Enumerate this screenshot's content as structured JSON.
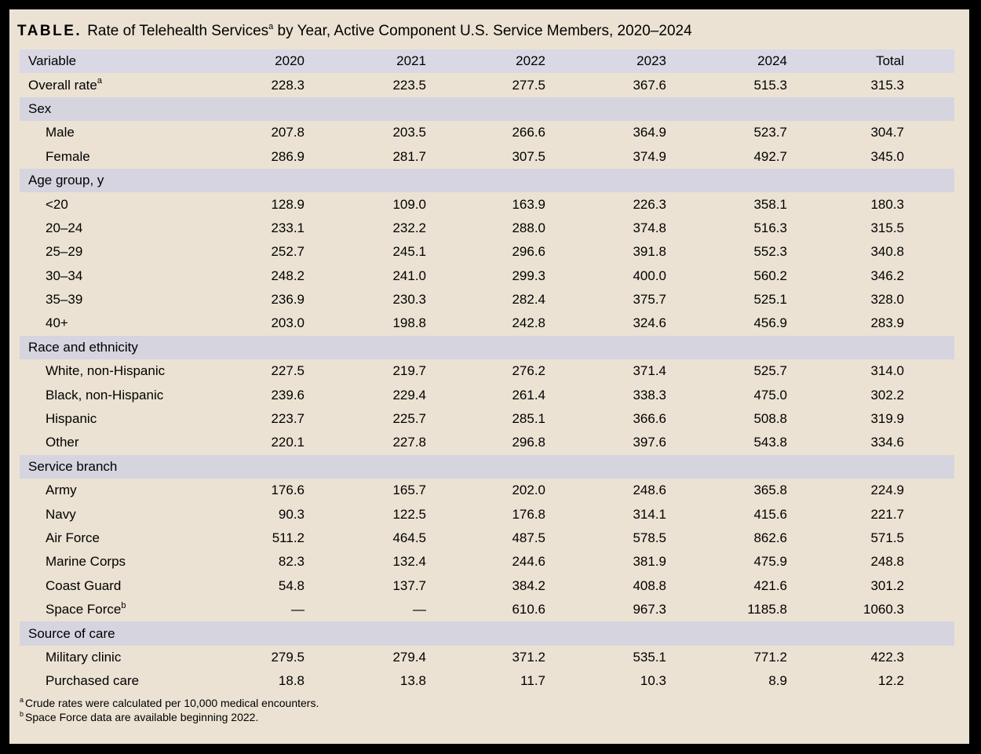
{
  "title": {
    "prefix": "TABLE.",
    "main": "Rate of Telehealth Services",
    "sup": "a",
    "rest": " by Year, Active Component U.S. Service Members, 2020–2024"
  },
  "colors": {
    "frame": "#000000",
    "page_background": "#EBE2D3",
    "header_band": "#DAD8E5",
    "section_band": "#D5D4DF",
    "text": "#000000"
  },
  "table": {
    "columns": [
      "Variable",
      "2020",
      "2021",
      "2022",
      "2023",
      "2024",
      "Total"
    ],
    "rows": [
      {
        "type": "data",
        "label": "Overall rate",
        "sup": "a",
        "indent": false,
        "values": [
          "228.3",
          "223.5",
          "277.5",
          "367.6",
          "515.3",
          "315.3"
        ]
      },
      {
        "type": "section",
        "label": "Sex"
      },
      {
        "type": "data",
        "label": "Male",
        "indent": true,
        "values": [
          "207.8",
          "203.5",
          "266.6",
          "364.9",
          "523.7",
          "304.7"
        ]
      },
      {
        "type": "data",
        "label": "Female",
        "indent": true,
        "values": [
          "286.9",
          "281.7",
          "307.5",
          "374.9",
          "492.7",
          "345.0"
        ]
      },
      {
        "type": "section",
        "label": "Age group, y"
      },
      {
        "type": "data",
        "label": "<20",
        "indent": true,
        "values": [
          "128.9",
          "109.0",
          "163.9",
          "226.3",
          "358.1",
          "180.3"
        ]
      },
      {
        "type": "data",
        "label": "20–24",
        "indent": true,
        "values": [
          "233.1",
          "232.2",
          "288.0",
          "374.8",
          "516.3",
          "315.5"
        ]
      },
      {
        "type": "data",
        "label": "25–29",
        "indent": true,
        "values": [
          "252.7",
          "245.1",
          "296.6",
          "391.8",
          "552.3",
          "340.8"
        ]
      },
      {
        "type": "data",
        "label": "30–34",
        "indent": true,
        "values": [
          "248.2",
          "241.0",
          "299.3",
          "400.0",
          "560.2",
          "346.2"
        ]
      },
      {
        "type": "data",
        "label": "35–39",
        "indent": true,
        "values": [
          "236.9",
          "230.3",
          "282.4",
          "375.7",
          "525.1",
          "328.0"
        ]
      },
      {
        "type": "data",
        "label": "40+",
        "indent": true,
        "values": [
          "203.0",
          "198.8",
          "242.8",
          "324.6",
          "456.9",
          "283.9"
        ]
      },
      {
        "type": "section",
        "label": "Race and ethnicity"
      },
      {
        "type": "data",
        "label": "White, non-Hispanic",
        "indent": true,
        "values": [
          "227.5",
          "219.7",
          "276.2",
          "371.4",
          "525.7",
          "314.0"
        ]
      },
      {
        "type": "data",
        "label": "Black, non-Hispanic",
        "indent": true,
        "values": [
          "239.6",
          "229.4",
          "261.4",
          "338.3",
          "475.0",
          "302.2"
        ]
      },
      {
        "type": "data",
        "label": "Hispanic",
        "indent": true,
        "values": [
          "223.7",
          "225.7",
          "285.1",
          "366.6",
          "508.8",
          "319.9"
        ]
      },
      {
        "type": "data",
        "label": "Other",
        "indent": true,
        "values": [
          "220.1",
          "227.8",
          "296.8",
          "397.6",
          "543.8",
          "334.6"
        ]
      },
      {
        "type": "section",
        "label": "Service branch"
      },
      {
        "type": "data",
        "label": "Army",
        "indent": true,
        "values": [
          "176.6",
          "165.7",
          "202.0",
          "248.6",
          "365.8",
          "224.9"
        ]
      },
      {
        "type": "data",
        "label": "Navy",
        "indent": true,
        "values": [
          "90.3",
          "122.5",
          "176.8",
          "314.1",
          "415.6",
          "221.7"
        ]
      },
      {
        "type": "data",
        "label": "Air Force",
        "indent": true,
        "values": [
          "511.2",
          "464.5",
          "487.5",
          "578.5",
          "862.6",
          "571.5"
        ]
      },
      {
        "type": "data",
        "label": "Marine Corps",
        "indent": true,
        "values": [
          "82.3",
          "132.4",
          "244.6",
          "381.9",
          "475.9",
          "248.8"
        ]
      },
      {
        "type": "data",
        "label": "Coast Guard",
        "indent": true,
        "values": [
          "54.8",
          "137.7",
          "384.2",
          "408.8",
          "421.6",
          "301.2"
        ]
      },
      {
        "type": "data",
        "label": "Space Force",
        "sup": "b",
        "indent": true,
        "values": [
          "—",
          "—",
          "610.6",
          "967.3",
          "1185.8",
          "1060.3"
        ]
      },
      {
        "type": "section",
        "label": "Source of care"
      },
      {
        "type": "data",
        "label": "Military clinic",
        "indent": true,
        "values": [
          "279.5",
          "279.4",
          "371.2",
          "535.1",
          "771.2",
          "422.3"
        ]
      },
      {
        "type": "data",
        "label": "Purchased care",
        "indent": true,
        "values": [
          "18.8",
          "13.8",
          "11.7",
          "10.3",
          "8.9",
          "12.2"
        ]
      }
    ]
  },
  "footnotes": [
    {
      "sup": "a",
      "text": "Crude rates were calculated per 10,000 medical encounters."
    },
    {
      "sup": "b",
      "text": "Space Force data are available beginning 2022."
    }
  ]
}
